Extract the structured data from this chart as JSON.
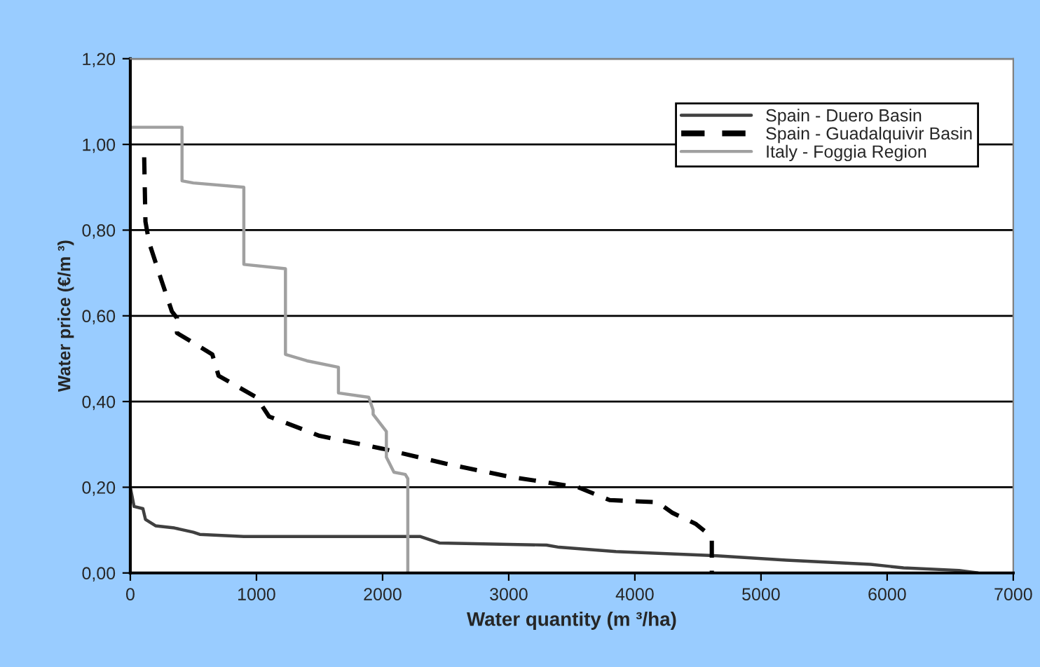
{
  "chart_data": {
    "type": "line",
    "xlabel": "Water quantity (m ³/ha)",
    "ylabel": "Water price (€/m ³)",
    "xlim": [
      0,
      7000
    ],
    "xticks": [
      0,
      1000,
      2000,
      3000,
      4000,
      5000,
      6000,
      7000
    ],
    "ylim": [
      0,
      1.2
    ],
    "yticks": [
      {
        "value": 0,
        "label": "0,00"
      },
      {
        "value": 0.2,
        "label": "0,20"
      },
      {
        "value": 0.4,
        "label": "0,40"
      },
      {
        "value": 0.6,
        "label": "0,60"
      },
      {
        "value": 0.8,
        "label": "0,80"
      },
      {
        "value": 1.0,
        "label": "1,00"
      },
      {
        "value": 1.2,
        "label": "1,20"
      }
    ],
    "grid": "y",
    "legend": "top right",
    "marker": "none",
    "series": [
      {
        "name": "Spain - Duero Basin",
        "color": "#404040",
        "line_style": "solid",
        "x": [
          0,
          30,
          100,
          120,
          200,
          350,
          500,
          550,
          900,
          2300,
          2400,
          2450,
          3300,
          3400,
          3850,
          4650,
          5200,
          5870,
          6130,
          6570,
          6720
        ],
        "values": [
          0.2,
          0.155,
          0.15,
          0.125,
          0.11,
          0.105,
          0.095,
          0.09,
          0.085,
          0.085,
          0.075,
          0.07,
          0.065,
          0.06,
          0.05,
          0.04,
          0.03,
          0.02,
          0.012,
          0.006,
          0
        ]
      },
      {
        "name": "Spain - Guadalquivir Basin",
        "color": "#000000",
        "line_style": "dashed",
        "x": [
          110,
          120,
          150,
          250,
          330,
          370,
          370,
          650,
          700,
          1000,
          1100,
          1500,
          2000,
          2500,
          3000,
          3330,
          3550,
          3800,
          4180,
          4300,
          4480,
          4570,
          4610,
          4610
        ],
        "values": [
          0.97,
          0.82,
          0.77,
          0.68,
          0.61,
          0.595,
          0.56,
          0.51,
          0.46,
          0.41,
          0.365,
          0.32,
          0.29,
          0.255,
          0.225,
          0.21,
          0.2,
          0.17,
          0.165,
          0.14,
          0.115,
          0.094,
          0.08,
          0
        ]
      },
      {
        "name": "Italy - Foggia Region",
        "color": "#a0a0a0",
        "line_style": "solid",
        "x": [
          0,
          410,
          410,
          500,
          900,
          900,
          1230,
          1230,
          1400,
          1650,
          1650,
          1890,
          1925,
          1925,
          2030,
          2030,
          2090,
          2180,
          2200,
          2200
        ],
        "values": [
          1.04,
          1.04,
          0.915,
          0.91,
          0.9,
          0.72,
          0.71,
          0.51,
          0.495,
          0.48,
          0.42,
          0.41,
          0.38,
          0.37,
          0.33,
          0.27,
          0.235,
          0.23,
          0.22,
          0
        ]
      }
    ]
  }
}
